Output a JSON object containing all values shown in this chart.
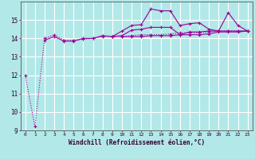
{
  "xlabel": "Windchill (Refroidissement éolien,°C)",
  "background_color": "#b2e8e8",
  "grid_color": "#ffffff",
  "line_color": "#990099",
  "x_values": [
    0,
    1,
    2,
    3,
    4,
    5,
    6,
    7,
    8,
    9,
    10,
    11,
    12,
    13,
    14,
    15,
    16,
    17,
    18,
    19,
    20,
    21,
    22,
    23
  ],
  "series": [
    [
      12.0,
      9.2,
      14.0,
      14.2,
      13.9,
      13.9,
      13.95,
      14.0,
      14.1,
      14.1,
      14.1,
      14.15,
      14.2,
      14.2,
      14.2,
      14.25,
      14.3,
      14.3,
      14.3,
      14.35,
      14.4,
      14.4,
      14.4,
      14.4
    ],
    [
      null,
      null,
      13.9,
      14.1,
      13.85,
      13.85,
      14.0,
      14.0,
      14.15,
      14.1,
      14.4,
      14.7,
      14.75,
      15.6,
      15.5,
      15.5,
      14.7,
      14.8,
      14.85,
      14.5,
      14.4,
      15.4,
      14.7,
      14.4
    ],
    [
      null,
      null,
      null,
      null,
      null,
      null,
      null,
      null,
      null,
      14.1,
      14.15,
      14.45,
      14.5,
      14.6,
      14.6,
      14.6,
      14.2,
      14.35,
      14.35,
      14.4,
      14.4,
      14.4,
      14.4,
      14.4
    ],
    [
      null,
      null,
      null,
      null,
      null,
      null,
      null,
      null,
      null,
      null,
      14.1,
      14.1,
      14.1,
      14.15,
      14.15,
      14.15,
      14.2,
      14.2,
      14.2,
      14.25,
      14.35,
      14.35,
      14.35,
      14.4
    ]
  ],
  "ylim": [
    9,
    16
  ],
  "yticks": [
    9,
    10,
    11,
    12,
    13,
    14,
    15
  ],
  "xlim": [
    -0.5,
    23.5
  ],
  "xticks": [
    0,
    1,
    2,
    3,
    4,
    5,
    6,
    7,
    8,
    9,
    10,
    11,
    12,
    13,
    14,
    15,
    16,
    17,
    18,
    19,
    20,
    21,
    22,
    23
  ]
}
